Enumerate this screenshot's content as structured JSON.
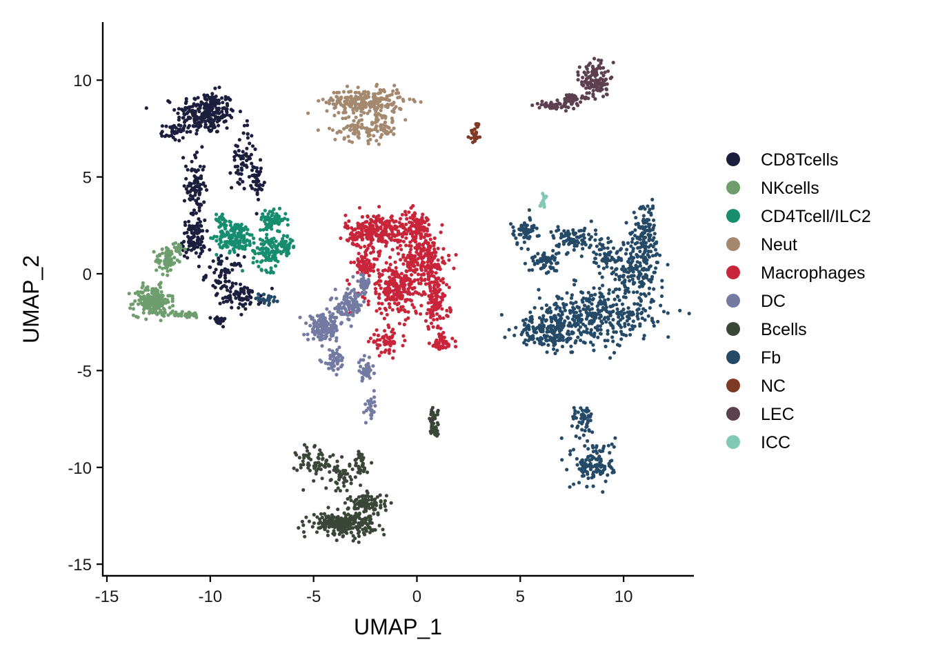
{
  "chart_data": {
    "type": "scatter",
    "xlabel": "UMAP_1",
    "ylabel": "UMAP_2",
    "xlim": [
      -15.2,
      13.4
    ],
    "ylim": [
      -15.6,
      13.0
    ],
    "x_ticks": [
      -15,
      -10,
      -5,
      0,
      5,
      10
    ],
    "y_ticks": [
      -15,
      -10,
      -5,
      0,
      5,
      10
    ],
    "x_tick_labels": [
      "-15",
      "-10",
      "-5",
      "0",
      "5",
      "10"
    ],
    "y_tick_labels": [
      "-15",
      "-10",
      "-5",
      "0",
      "5",
      "10"
    ],
    "grid": false,
    "legend_position": "right",
    "series": [
      {
        "name": "CD8Tcells",
        "color": "#1b1e3c",
        "blobs": [
          [
            -10.2,
            8.3,
            1.3,
            1.0,
            2.0
          ],
          [
            -10.7,
            4.5,
            0.4,
            1.6,
            0.7
          ],
          [
            -10.8,
            1.8,
            0.5,
            0.9,
            0.8
          ],
          [
            -9.3,
            0.0,
            0.8,
            0.8,
            0.5
          ],
          [
            -8.5,
            -1.2,
            0.9,
            0.6,
            0.6
          ],
          [
            -8.4,
            6.0,
            0.5,
            1.5,
            0.5
          ],
          [
            -7.7,
            4.8,
            0.2,
            0.8,
            0.3
          ],
          [
            -11.8,
            7.3,
            0.5,
            0.4,
            0.3
          ],
          [
            -9.6,
            -2.4,
            0.3,
            0.2,
            0.2
          ]
        ]
      },
      {
        "name": "NKcells",
        "color": "#6f9e6e",
        "blobs": [
          [
            -12.8,
            -1.4,
            0.8,
            0.7,
            1.6
          ],
          [
            -12.1,
            0.7,
            0.5,
            0.6,
            0.5
          ],
          [
            -11.6,
            1.3,
            0.3,
            0.3,
            0.2
          ],
          [
            -11.3,
            -2.1,
            0.8,
            0.15,
            0.3
          ]
        ]
      },
      {
        "name": "CD4Tcell/ILC2",
        "color": "#168d6e",
        "blobs": [
          [
            -8.8,
            1.9,
            0.8,
            0.7,
            1.3
          ],
          [
            -7.2,
            1.2,
            0.7,
            0.9,
            0.9
          ],
          [
            -7.0,
            2.8,
            0.6,
            0.4,
            0.6
          ],
          [
            -6.3,
            1.4,
            0.3,
            0.4,
            0.3
          ],
          [
            -9.5,
            2.8,
            0.3,
            0.3,
            0.2
          ]
        ]
      },
      {
        "name": "Neut",
        "color": "#a4896e",
        "blobs": [
          [
            -2.5,
            8.9,
            1.7,
            0.6,
            2.0
          ],
          [
            -2.8,
            7.5,
            1.2,
            0.6,
            0.7
          ],
          [
            -1.6,
            7.7,
            0.5,
            0.6,
            0.3
          ]
        ]
      },
      {
        "name": "Macrophages",
        "color": "#c9253a",
        "blobs": [
          [
            -1.9,
            2.2,
            1.4,
            0.8,
            2.2
          ],
          [
            0.0,
            2.2,
            0.8,
            1.0,
            1.0
          ],
          [
            0.5,
            0.7,
            0.9,
            0.9,
            1.2
          ],
          [
            -0.9,
            -0.7,
            1.4,
            1.4,
            2.2
          ],
          [
            0.9,
            -1.5,
            0.6,
            1.2,
            0.9
          ],
          [
            1.2,
            -3.6,
            0.5,
            0.4,
            0.4
          ],
          [
            -2.5,
            0.5,
            0.6,
            0.5,
            0.5
          ],
          [
            -1.5,
            -3.5,
            0.7,
            0.5,
            0.5
          ]
        ]
      },
      {
        "name": "DC",
        "color": "#737ba3",
        "blobs": [
          [
            -4.5,
            -2.8,
            0.7,
            0.6,
            1.3
          ],
          [
            -3.3,
            -1.7,
            0.6,
            0.7,
            0.8
          ],
          [
            -2.6,
            -0.5,
            0.3,
            0.5,
            0.3
          ],
          [
            -4.0,
            -4.5,
            0.5,
            0.5,
            0.4
          ],
          [
            -2.5,
            -5.0,
            0.3,
            0.5,
            0.3
          ],
          [
            -2.2,
            -6.8,
            0.2,
            0.7,
            0.2
          ]
        ]
      },
      {
        "name": "Bcells",
        "color": "#3a4637",
        "blobs": [
          [
            -3.6,
            -12.9,
            1.4,
            0.5,
            2.0
          ],
          [
            -2.4,
            -11.9,
            0.8,
            0.5,
            0.8
          ],
          [
            -4.8,
            -9.8,
            0.9,
            0.9,
            0.6
          ],
          [
            -3.6,
            -10.5,
            0.4,
            0.7,
            0.3
          ],
          [
            -2.7,
            -9.9,
            0.3,
            0.7,
            0.3
          ],
          [
            0.8,
            -7.6,
            0.2,
            0.6,
            0.3
          ],
          [
            0.9,
            -8.2,
            0.15,
            0.2,
            0.15
          ]
        ]
      },
      {
        "name": "Fb",
        "color": "#244a68",
        "blobs": [
          [
            8.5,
            -2.3,
            2.6,
            1.3,
            3.0
          ],
          [
            10.6,
            0.3,
            1.2,
            1.7,
            1.6
          ],
          [
            11.1,
            2.4,
            0.6,
            1.3,
            0.7
          ],
          [
            6.2,
            -3.0,
            1.2,
            0.7,
            1.2
          ],
          [
            5.2,
            2.2,
            0.6,
            0.6,
            0.5
          ],
          [
            7.7,
            1.8,
            1.0,
            0.6,
            0.7
          ],
          [
            9.0,
            0.9,
            0.6,
            0.7,
            0.4
          ],
          [
            6.2,
            0.6,
            0.6,
            0.6,
            0.5
          ],
          [
            8.6,
            -9.8,
            0.9,
            1.1,
            1.1
          ],
          [
            8.1,
            -7.6,
            0.5,
            0.8,
            0.4
          ],
          [
            -7.3,
            -1.3,
            0.5,
            0.3,
            0.2
          ]
        ]
      },
      {
        "name": "NC",
        "color": "#7e3a24",
        "blobs": [
          [
            2.8,
            7.1,
            0.2,
            0.3,
            0.2
          ],
          [
            2.9,
            7.7,
            0.1,
            0.2,
            0.05
          ]
        ]
      },
      {
        "name": "LEC",
        "color": "#5c404f",
        "blobs": [
          [
            8.6,
            10.0,
            0.6,
            0.9,
            1.0
          ],
          [
            7.4,
            9.0,
            0.5,
            0.3,
            0.4
          ],
          [
            6.5,
            8.7,
            0.6,
            0.15,
            0.3
          ]
        ]
      },
      {
        "name": "ICC",
        "color": "#82c9b4",
        "blobs": [
          [
            6.1,
            3.8,
            0.15,
            0.4,
            0.15
          ]
        ]
      }
    ]
  }
}
